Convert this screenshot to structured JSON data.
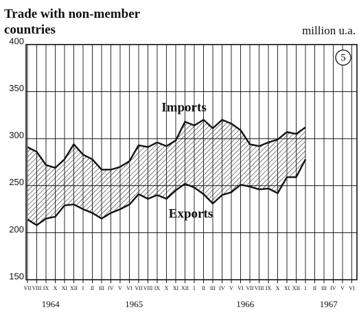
{
  "chart_data": {
    "type": "line",
    "title": [
      "Trade with non-member",
      "countries"
    ],
    "unit_label": "million u.a.",
    "badge": "5",
    "categories": [
      "VII",
      "VIII",
      "IX",
      "X",
      "XI",
      "XII",
      "I",
      "II",
      "III",
      "IV",
      "V",
      "VI",
      "VII",
      "VIII",
      "IX",
      "X",
      "XI",
      "XII",
      "I",
      "II",
      "III",
      "IV",
      "V",
      "VI",
      "VII",
      "VIII",
      "IX",
      "X",
      "XI",
      "XII",
      "I",
      "II",
      "III",
      "IV",
      "V",
      "VI"
    ],
    "year_labels": [
      "1964",
      "1965",
      "1966",
      "1967"
    ],
    "series": [
      {
        "name": "Imports",
        "color": "#111111",
        "values": [
          291,
          286,
          272,
          269,
          278,
          294,
          283,
          278,
          267,
          267,
          270,
          276,
          293,
          291,
          296,
          292,
          298,
          318,
          314,
          320,
          311,
          320,
          316,
          309,
          294,
          292,
          296,
          299,
          307,
          305,
          312,
          null,
          null,
          null,
          null,
          null
        ]
      },
      {
        "name": "Exports",
        "color": "#111111",
        "values": [
          214,
          208,
          215,
          217,
          229,
          230,
          225,
          221,
          215,
          221,
          225,
          230,
          241,
          236,
          240,
          236,
          245,
          252,
          248,
          241,
          231,
          240,
          243,
          251,
          249,
          246,
          247,
          242,
          259,
          259,
          278,
          null,
          null,
          null,
          null,
          null
        ]
      }
    ],
    "ylim": [
      150,
      400
    ],
    "yticks": [
      150,
      200,
      250,
      300,
      350,
      400
    ],
    "grid": true,
    "fill_between": true
  }
}
